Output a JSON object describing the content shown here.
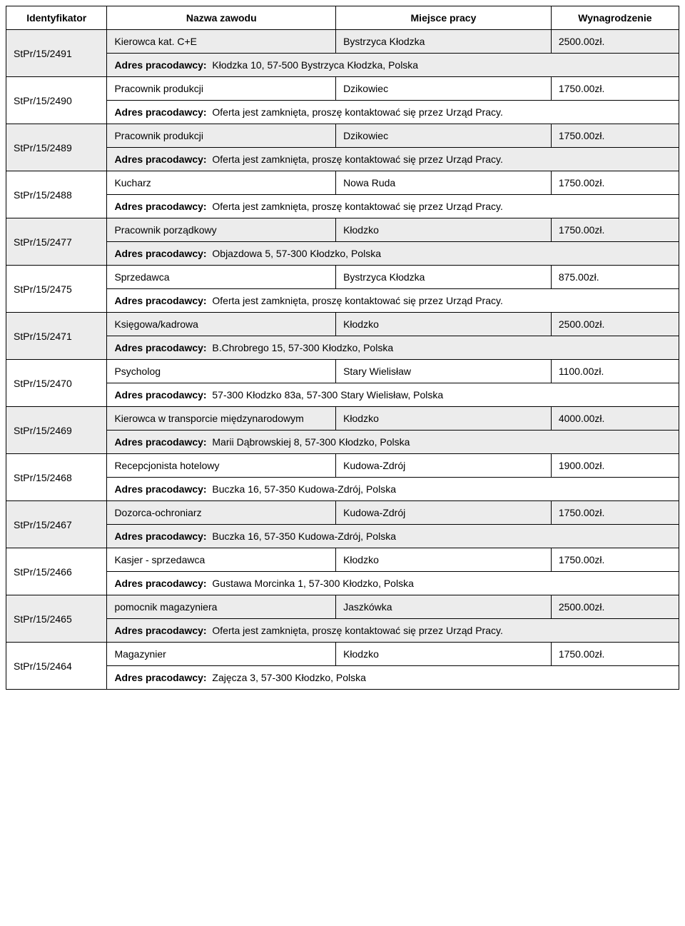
{
  "headers": {
    "id": "Identyfikator",
    "name": "Nazwa zawodu",
    "place": "Miejsce pracy",
    "salary": "Wynagrodzenie"
  },
  "address_label": "Adres pracodawcy:",
  "styling": {
    "font_family": "Verdana, Geneva, sans-serif",
    "font_size_pt": 11,
    "border_color": "#000000",
    "shaded_bg": "#ececec",
    "plain_bg": "#ffffff",
    "text_color": "#000000",
    "col_widths": {
      "id": "15%",
      "name": "34%",
      "place": "32%",
      "salary": "19%"
    }
  },
  "rows": [
    {
      "id": "StPr/15/2491",
      "name": "Kierowca kat. C+E",
      "place": "Bystrzyca Kłodzka",
      "salary": "2500.00zł.",
      "address": "Kłodzka 10, 57-500 Bystrzyca Kłodzka, Polska",
      "shaded": true
    },
    {
      "id": "StPr/15/2490",
      "name": "Pracownik produkcji",
      "place": "Dzikowiec",
      "salary": "1750.00zł.",
      "address": "Oferta jest zamknięta, proszę kontaktować się przez Urząd Pracy.",
      "shaded": false
    },
    {
      "id": "StPr/15/2489",
      "name": "Pracownik produkcji",
      "place": "Dzikowiec",
      "salary": "1750.00zł.",
      "address": "Oferta jest zamknięta, proszę kontaktować się przez Urząd Pracy.",
      "shaded": true
    },
    {
      "id": "StPr/15/2488",
      "name": "Kucharz",
      "place": "Nowa Ruda",
      "salary": "1750.00zł.",
      "address": "Oferta jest zamknięta, proszę kontaktować się przez Urząd Pracy.",
      "shaded": false
    },
    {
      "id": "StPr/15/2477",
      "name": "Pracownik porządkowy",
      "place": "Kłodzko",
      "salary": "1750.00zł.",
      "address": "Objazdowa 5, 57-300 Kłodzko, Polska",
      "shaded": true
    },
    {
      "id": "StPr/15/2475",
      "name": "Sprzedawca",
      "place": "Bystrzyca Kłodzka",
      "salary": "875.00zł.",
      "address": "Oferta jest zamknięta, proszę kontaktować się przez Urząd Pracy.",
      "shaded": false
    },
    {
      "id": "StPr/15/2471",
      "name": "Księgowa/kadrowa",
      "place": "Kłodzko",
      "salary": "2500.00zł.",
      "address": "B.Chrobrego 15, 57-300 Kłodzko, Polska",
      "shaded": true
    },
    {
      "id": "StPr/15/2470",
      "name": "Psycholog",
      "place": "Stary Wielisław",
      "salary": "1100.00zł.",
      "address": "57-300 Kłodzko 83a, 57-300 Stary Wielisław, Polska",
      "shaded": false
    },
    {
      "id": "StPr/15/2469",
      "name": "Kierowca w transporcie międzynarodowym",
      "place": "Kłodzko",
      "salary": "4000.00zł.",
      "address": "Marii Dąbrowskiej 8, 57-300 Kłodzko, Polska",
      "shaded": true
    },
    {
      "id": "StPr/15/2468",
      "name": "Recepcjonista hotelowy",
      "place": "Kudowa-Zdrój",
      "salary": "1900.00zł.",
      "address": "Buczka 16, 57-350 Kudowa-Zdrój, Polska",
      "shaded": false
    },
    {
      "id": "StPr/15/2467",
      "name": "Dozorca-ochroniarz",
      "place": "Kudowa-Zdrój",
      "salary": "1750.00zł.",
      "address": "Buczka 16, 57-350 Kudowa-Zdrój, Polska",
      "shaded": true
    },
    {
      "id": "StPr/15/2466",
      "name": "Kasjer - sprzedawca",
      "place": "Kłodzko",
      "salary": "1750.00zł.",
      "address": "Gustawa Morcinka 1, 57-300 Kłodzko, Polska",
      "shaded": false
    },
    {
      "id": "StPr/15/2465",
      "name": "pomocnik magazyniera",
      "place": "Jaszkówka",
      "salary": "2500.00zł.",
      "address": "Oferta jest zamknięta, proszę kontaktować się przez Urząd Pracy.",
      "shaded": true
    },
    {
      "id": "StPr/15/2464",
      "name": "Magazynier",
      "place": "Kłodzko",
      "salary": "1750.00zł.",
      "address": "Zajęcza 3, 57-300 Kłodzko, Polska",
      "shaded": false
    }
  ]
}
